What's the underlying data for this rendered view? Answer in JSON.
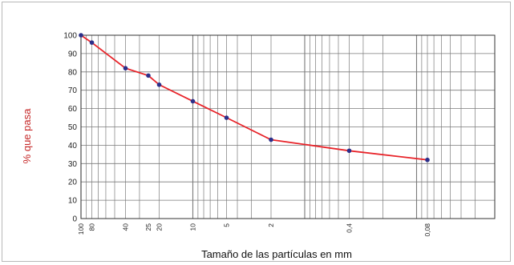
{
  "chart_data": {
    "type": "line",
    "title": "",
    "xlabel": "Tamaño de las partículas en mm",
    "ylabel": "% que pasa",
    "x_scale": "log-reversed",
    "xlim": [
      100,
      0.02
    ],
    "ylim": [
      0,
      100
    ],
    "yticks": [
      0,
      10,
      20,
      30,
      40,
      50,
      60,
      70,
      80,
      90,
      100
    ],
    "xtick_labels": [
      {
        "value": 100,
        "label": "100"
      },
      {
        "value": 80,
        "label": "80"
      },
      {
        "value": 40,
        "label": "40"
      },
      {
        "value": 25,
        "label": "25"
      },
      {
        "value": 20,
        "label": "20"
      },
      {
        "value": 10,
        "label": "10"
      },
      {
        "value": 5,
        "label": "5"
      },
      {
        "value": 2,
        "label": "2"
      },
      {
        "value": 0.4,
        "label": "0,4"
      },
      {
        "value": 0.08,
        "label": "0,08"
      }
    ],
    "series": [
      {
        "x": [
          100,
          80,
          40,
          25,
          20,
          10,
          5,
          2,
          0.4,
          0.08
        ],
        "y": [
          100,
          96,
          82,
          78,
          73,
          64,
          55,
          43,
          37,
          32
        ]
      }
    ],
    "line_color": "#e8242a",
    "marker_color": "#2b2f8a",
    "grid": true,
    "grid_color": "#7a7a7a"
  }
}
